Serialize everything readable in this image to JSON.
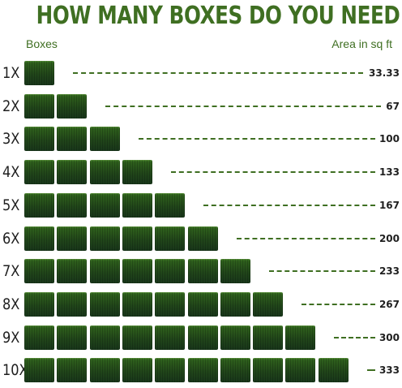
{
  "title": "HOW MANY BOXES DO YOU NEED",
  "labels": {
    "left": "Boxes",
    "right": "Area in sq ft"
  },
  "colors": {
    "title": "#3f6f22",
    "label": "#3f6f22",
    "dash": "#3f6f22",
    "text": "#1f1f1f",
    "tile_dark": "#21461a",
    "tile_light": "#3f7a28"
  },
  "rows": [
    {
      "multiplier": "1X",
      "boxes": 1,
      "area": "33.33"
    },
    {
      "multiplier": "2X",
      "boxes": 2,
      "area": "67"
    },
    {
      "multiplier": "3X",
      "boxes": 3,
      "area": "100"
    },
    {
      "multiplier": "4X",
      "boxes": 4,
      "area": "133"
    },
    {
      "multiplier": "5X",
      "boxes": 5,
      "area": "167"
    },
    {
      "multiplier": "6X",
      "boxes": 6,
      "area": "200"
    },
    {
      "multiplier": "7X",
      "boxes": 7,
      "area": "233"
    },
    {
      "multiplier": "8X",
      "boxes": 8,
      "area": "267"
    },
    {
      "multiplier": "9X",
      "boxes": 9,
      "area": "300"
    },
    {
      "multiplier": "10X",
      "boxes": 10,
      "area": "333"
    }
  ]
}
